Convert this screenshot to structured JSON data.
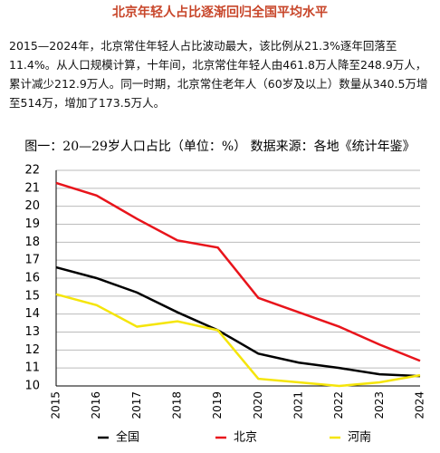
{
  "title": "北京年轻人占比逐渐回归全国平均水平",
  "paragraph": "2015—2024年，北京常住年轻人占比波动最大，该比例从21.3%逐年回落至11.4%。从人口规模计算，十年间，北京常住年轻人由461.8万人降至248.9万人，累计减少212.9万人。同一时期，北京常住老年人（60岁及以上）数量从340.5万增至514万，增加了173.5万人。",
  "chart_data": {
    "type": "line",
    "title": "图一：20—29岁人口占比（单位：%）  数据来源：各地《统计年鉴》",
    "categories": [
      "2015",
      "2016",
      "2017",
      "2018",
      "2019",
      "2020",
      "2021",
      "2022",
      "2023",
      "2024"
    ],
    "series": [
      {
        "name": "全国",
        "color": "#000000",
        "values": [
          16.6,
          16.0,
          15.2,
          14.1,
          13.1,
          11.8,
          11.3,
          11.0,
          10.65,
          10.55
        ]
      },
      {
        "name": "北京",
        "color": "#e8141b",
        "values": [
          21.3,
          20.6,
          19.3,
          18.1,
          17.7,
          14.9,
          14.1,
          13.3,
          12.3,
          11.4
        ]
      },
      {
        "name": "河南",
        "color": "#f5e50a",
        "values": [
          15.1,
          14.5,
          13.3,
          13.6,
          13.1,
          10.4,
          10.2,
          10.0,
          10.2,
          10.6
        ]
      }
    ],
    "ylim": [
      10,
      22
    ],
    "yticks": [
      10,
      11,
      12,
      13,
      14,
      15,
      16,
      17,
      18,
      19,
      20,
      21,
      22
    ],
    "grid": true
  }
}
